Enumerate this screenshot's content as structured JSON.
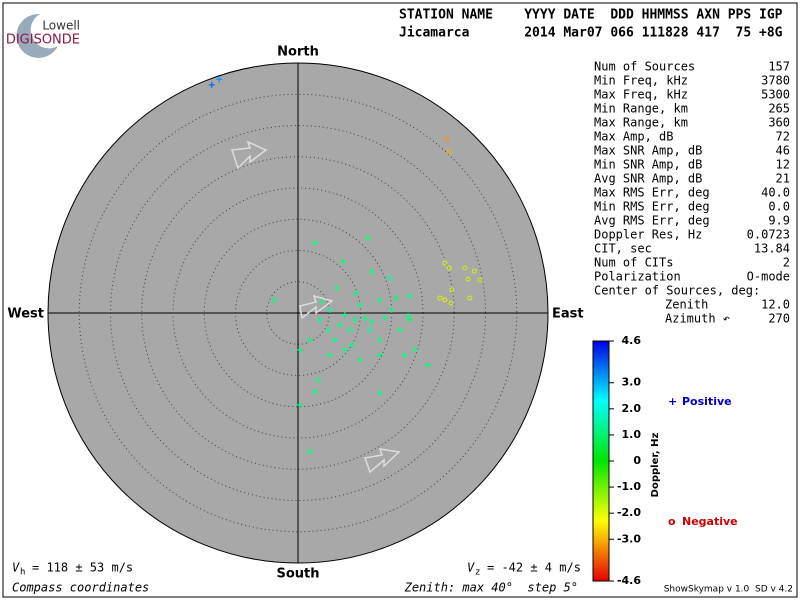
{
  "logo": {
    "top": "Lowell",
    "bottom": "DIGISONDE"
  },
  "header": {
    "line1": "STATION NAME    YYYY DATE  DDD HHMMSS AXN PPS IGP",
    "line2": "Jicamarca       2014 Mar07 066 111828 417  75 +8G"
  },
  "stats": {
    "rows": [
      [
        "Num of Sources",
        "157"
      ],
      [
        "Min Freq, kHz",
        "3780"
      ],
      [
        "Max Freq, kHz",
        "5300"
      ],
      [
        "Min Range, km",
        "265"
      ],
      [
        "Max Range, km",
        "360"
      ],
      [
        "Max Amp, dB",
        "72"
      ],
      [
        "Max SNR Amp, dB",
        "46"
      ],
      [
        "Min SNR Amp, dB",
        "12"
      ],
      [
        "Avg SNR Amp, dB",
        "21"
      ],
      [
        "Max RMS Err, deg",
        "40.0"
      ],
      [
        "Min RMS Err, deg",
        "0.0"
      ],
      [
        "Avg RMS Err, deg",
        "9.9"
      ],
      [
        "Doppler Res, Hz",
        "0.0723"
      ],
      [
        "CIT, sec",
        "13.84"
      ],
      [
        "Num of CITs",
        "2"
      ],
      [
        "Polarization",
        "O-mode"
      ]
    ],
    "center_heading": "Center of Sources, deg:",
    "center_rows": [
      [
        "Zenith",
        "12.0"
      ],
      [
        "Azimuth ↶",
        "270"
      ]
    ]
  },
  "footer": {
    "vh": {
      "symbol": "V",
      "subscript": "h",
      "text": "= 118 ± 53 m/s"
    },
    "vz": {
      "symbol": "V",
      "subscript": "z",
      "text": "= -42 ± 4 m/s"
    },
    "coords": "Compass coordinates",
    "zenith": "Zenith: max 40°  step 5°",
    "version": "ShowSkymap v 1.0  SD v 4.2"
  },
  "chart_data": {
    "type": "skymap",
    "compass": {
      "north": "North",
      "south": "South",
      "east": "East",
      "west": "West"
    },
    "xlim": [
      -40,
      40
    ],
    "ylim": [
      -40,
      40
    ],
    "rings": [
      5,
      10,
      15,
      20,
      25,
      30,
      35
    ],
    "points": [
      {
        "x": 2.7,
        "y": 11.2,
        "doppler": 1.2
      },
      {
        "x": 11.2,
        "y": 12.0,
        "doppler": 1.2
      },
      {
        "x": 7.2,
        "y": 8.2,
        "doppler": 1.0
      },
      {
        "x": 11.8,
        "y": 6.6,
        "doppler": 1.2
      },
      {
        "x": 14.7,
        "y": 5.6,
        "doppler": 1.5
      },
      {
        "x": 6.2,
        "y": 4.0,
        "doppler": 1.2
      },
      {
        "x": 9.3,
        "y": 3.2,
        "doppler": 1.2
      },
      {
        "x": 17.9,
        "y": 2.7,
        "doppler": 1.2
      },
      {
        "x": 15.7,
        "y": 2.4,
        "doppler": 1.0
      },
      {
        "x": 13.1,
        "y": 2.1,
        "doppler": 1.2
      },
      {
        "x": -3.8,
        "y": 2.1,
        "doppler": 1.2
      },
      {
        "x": 3.8,
        "y": 1.8,
        "doppler": 1.2
      },
      {
        "x": 9.9,
        "y": 1.3,
        "doppler": 1.2
      },
      {
        "x": 5.1,
        "y": 0.5,
        "doppler": 1.5
      },
      {
        "x": 7.5,
        "y": -0.3,
        "doppler": 1.2
      },
      {
        "x": 10.7,
        "y": -0.8,
        "doppler": 1.2
      },
      {
        "x": 13.9,
        "y": -0.8,
        "doppler": 1.2
      },
      {
        "x": 17.9,
        "y": -1.1,
        "doppler": 1.0
      },
      {
        "x": 3.5,
        "y": -1.1,
        "doppler": 1.2
      },
      {
        "x": 6.7,
        "y": -1.9,
        "doppler": 1.2
      },
      {
        "x": 8.3,
        "y": -2.7,
        "doppler": 1.2
      },
      {
        "x": 11.5,
        "y": -2.7,
        "doppler": 1.5
      },
      {
        "x": 13.1,
        "y": -4.3,
        "doppler": 1.2
      },
      {
        "x": 0.3,
        "y": -5.9,
        "doppler": 1.2
      },
      {
        "x": 1.9,
        "y": -4.3,
        "doppler": 1.2
      },
      {
        "x": 5.1,
        "y": -6.7,
        "doppler": 1.2
      },
      {
        "x": 7.5,
        "y": -5.9,
        "doppler": 1.2
      },
      {
        "x": 9.9,
        "y": -7.5,
        "doppler": 1.0
      },
      {
        "x": 13.1,
        "y": -6.7,
        "doppler": 1.2
      },
      {
        "x": 17.1,
        "y": -6.7,
        "doppler": 1.2
      },
      {
        "x": 18.7,
        "y": -5.9,
        "doppler": 1.2
      },
      {
        "x": 20.8,
        "y": -8.3,
        "doppler": 1.0
      },
      {
        "x": 13.1,
        "y": -12.8,
        "doppler": 1.2
      },
      {
        "x": 3.2,
        "y": -10.7,
        "doppler": 1.2
      },
      {
        "x": 0.3,
        "y": -14.7,
        "doppler": 1.2
      },
      {
        "x": 2.7,
        "y": -12.6,
        "doppler": 1.2
      },
      {
        "x": 1.9,
        "y": -22.2,
        "doppler": 1.2
      },
      {
        "x": 16.3,
        "y": -2.7,
        "doppler": 1.2
      },
      {
        "x": 5.9,
        "y": -4.3,
        "doppler": 1.2
      },
      {
        "x": 9.1,
        "y": -1.1,
        "doppler": 1.2
      },
      {
        "x": 11.8,
        "y": -1.4,
        "doppler": 1.2
      },
      {
        "x": 15.0,
        "y": 0.5,
        "doppler": 1.2
      },
      {
        "x": 17.6,
        "y": -0.5,
        "doppler": 1.2
      },
      {
        "x": 4.8,
        "y": -2.7,
        "doppler": 1.2
      },
      {
        "x": 8.6,
        "y": -5.1,
        "doppler": 1.2
      },
      {
        "x": -13.8,
        "y": 36.5,
        "doppler": 3.6
      },
      {
        "x": -12.6,
        "y": 37.4,
        "doppler": 3.2
      },
      {
        "x": 23.8,
        "y": 27.8,
        "doppler": -3.2
      },
      {
        "x": 24.2,
        "y": 25.8,
        "doppler": -2.9
      },
      {
        "x": 23.5,
        "y": 8.0,
        "doppler": -2.0
      },
      {
        "x": 24.2,
        "y": 7.2,
        "doppler": -2.0
      },
      {
        "x": 26.7,
        "y": 7.2,
        "doppler": -1.8
      },
      {
        "x": 28.2,
        "y": 6.7,
        "doppler": -2.0
      },
      {
        "x": 27.2,
        "y": 5.4,
        "doppler": -2.0
      },
      {
        "x": 29.1,
        "y": 5.3,
        "doppler": -1.8
      },
      {
        "x": 22.7,
        "y": 2.4,
        "doppler": -2.0
      },
      {
        "x": 23.5,
        "y": 2.1,
        "doppler": -2.2
      },
      {
        "x": 24.5,
        "y": 1.6,
        "doppler": -2.0
      },
      {
        "x": 27.5,
        "y": 2.4,
        "doppler": -2.0
      },
      {
        "x": 24.6,
        "y": 3.7,
        "doppler": -2.0
      }
    ],
    "colorbar": {
      "label": "Doppler, Hz",
      "lim": [
        -4.6,
        4.6
      ],
      "ticks": [
        4.6,
        {
          "value": 3,
          "label": "3.0"
        },
        {
          "value": 2,
          "label": "2.0"
        },
        {
          "value": 1,
          "label": "1.0"
        },
        0,
        {
          "value": -1,
          "label": "-1.0"
        },
        {
          "value": -2,
          "label": "-2.0"
        },
        {
          "value": -3,
          "label": "-3.0"
        },
        -4.6
      ]
    },
    "legend": {
      "positive": "Positive",
      "negative": "Negative",
      "positive_marker": "+",
      "negative_marker": "o"
    }
  }
}
